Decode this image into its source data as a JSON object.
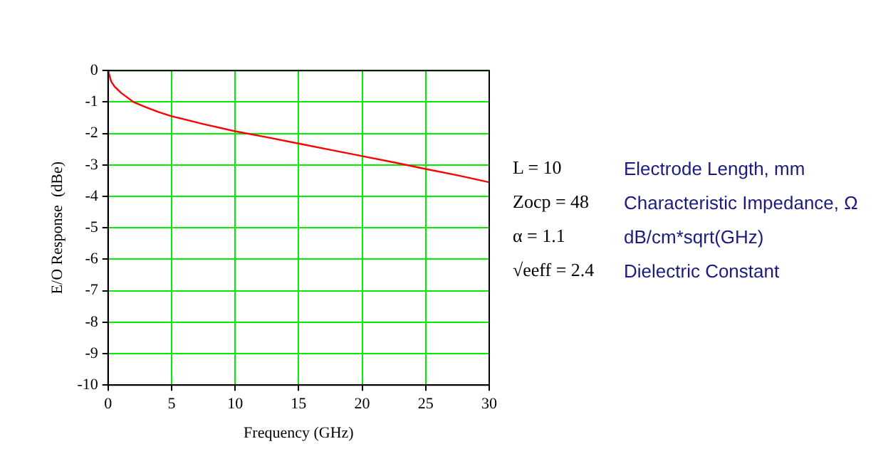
{
  "chart_data": {
    "type": "line",
    "xlabel": "Frequency (GHz)",
    "ylabel": "E/O Response  (dBe)",
    "x": [
      0,
      0.25,
      0.5,
      1,
      2,
      3,
      4,
      5,
      7.5,
      10,
      12.5,
      15,
      17.5,
      20,
      22.5,
      25,
      27.5,
      30
    ],
    "series": [
      {
        "color": "#ff0000",
        "values": [
          0,
          -0.35,
          -0.5,
          -0.7,
          -1.0,
          -1.17,
          -1.32,
          -1.45,
          -1.7,
          -1.93,
          -2.12,
          -2.32,
          -2.52,
          -2.72,
          -2.92,
          -3.13,
          -3.33,
          -3.55
        ]
      }
    ],
    "xlim": [
      0,
      30
    ],
    "xticks": [
      0,
      5,
      10,
      15,
      20,
      25,
      30
    ],
    "ylim": [
      -10,
      0
    ],
    "yticks": [
      -10,
      -9,
      -8,
      -7,
      -6,
      -5,
      -4,
      -3,
      -2,
      -1,
      0
    ],
    "grid": true,
    "legend": false,
    "marker": "none",
    "line_style": "solid",
    "annotations": [
      "L = 10",
      "Electrode Length, mm",
      "Zocp = 48",
      "Characteristic Impedance, Ω",
      "α = 1.1",
      "dB/cm*sqrt(GHz)",
      "√eeff = 2.4",
      "Dielectric Constant"
    ]
  }
}
